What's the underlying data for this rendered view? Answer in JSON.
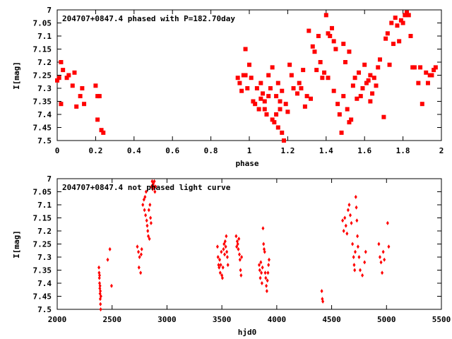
{
  "chart_data": [
    {
      "type": "scatter",
      "title": "204707+0847.4 phased with P=182.70day",
      "xlabel": "phase",
      "ylabel": "I[mag]",
      "xlim": [
        0,
        2
      ],
      "ylim": [
        7.5,
        7
      ],
      "y_inverted": true,
      "x_ticks": [
        "0",
        "0.2",
        "0.4",
        "0.6",
        "0.8",
        "1",
        "1.2",
        "1.4",
        "1.6",
        "1.8",
        "2"
      ],
      "y_ticks": [
        "7",
        "7.05",
        "7.1",
        "7.15",
        "7.2",
        "7.25",
        "7.3",
        "7.35",
        "7.4",
        "7.45",
        "7.5"
      ],
      "marker_color": "#ff0000",
      "marker": "filled-square",
      "grid": false,
      "series": [
        {
          "values": [
            [
              0.0,
              7.27
            ],
            [
              0.01,
              7.26
            ],
            [
              0.02,
              7.2
            ],
            [
              0.03,
              7.23
            ],
            [
              0.02,
              7.36
            ],
            [
              0.05,
              7.26
            ],
            [
              0.06,
              7.25
            ],
            [
              0.08,
              7.29
            ],
            [
              0.09,
              7.24
            ],
            [
              0.1,
              7.37
            ],
            [
              0.12,
              7.33
            ],
            [
              0.13,
              7.3
            ],
            [
              0.14,
              7.36
            ],
            [
              0.2,
              7.29
            ],
            [
              0.21,
              7.33
            ],
            [
              0.22,
              7.33
            ],
            [
              0.21,
              7.42
            ],
            [
              0.23,
              7.46
            ],
            [
              0.24,
              7.47
            ],
            [
              0.94,
              7.26
            ],
            [
              0.95,
              7.28
            ],
            [
              0.96,
              7.31
            ],
            [
              0.97,
              7.25
            ],
            [
              0.98,
              7.25
            ],
            [
              0.98,
              7.15
            ],
            [
              0.99,
              7.3
            ],
            [
              1.0,
              7.21
            ],
            [
              1.01,
              7.26
            ],
            [
              1.02,
              7.35
            ],
            [
              1.03,
              7.36
            ],
            [
              1.04,
              7.3
            ],
            [
              1.05,
              7.38
            ],
            [
              1.06,
              7.34
            ],
            [
              1.07,
              7.32
            ],
            [
              1.08,
              7.38
            ],
            [
              1.09,
              7.4
            ],
            [
              1.1,
              7.33
            ],
            [
              1.11,
              7.3
            ],
            [
              1.12,
              7.42
            ],
            [
              1.13,
              7.43
            ],
            [
              1.14,
              7.4
            ],
            [
              1.15,
              7.45
            ],
            [
              1.16,
              7.38
            ],
            [
              1.17,
              7.47
            ],
            [
              1.18,
              7.5
            ],
            [
              1.15,
              7.28
            ],
            [
              1.16,
              7.35
            ],
            [
              1.12,
              7.22
            ],
            [
              1.1,
              7.25
            ],
            [
              1.06,
              7.28
            ],
            [
              1.08,
              7.35
            ],
            [
              1.14,
              7.33
            ],
            [
              1.17,
              7.31
            ],
            [
              1.19,
              7.36
            ],
            [
              1.2,
              7.39
            ],
            [
              1.21,
              7.21
            ],
            [
              1.22,
              7.25
            ],
            [
              1.23,
              7.3
            ],
            [
              1.25,
              7.32
            ],
            [
              1.26,
              7.28
            ],
            [
              1.27,
              7.3
            ],
            [
              1.28,
              7.23
            ],
            [
              1.29,
              7.37
            ],
            [
              1.3,
              7.33
            ],
            [
              1.31,
              7.08
            ],
            [
              1.32,
              7.34
            ],
            [
              1.33,
              7.14
            ],
            [
              1.34,
              7.16
            ],
            [
              1.35,
              7.23
            ],
            [
              1.36,
              7.1
            ],
            [
              1.37,
              7.2
            ],
            [
              1.38,
              7.26
            ],
            [
              1.39,
              7.24
            ],
            [
              1.4,
              7.02
            ],
            [
              1.41,
              7.26
            ],
            [
              1.42,
              7.1
            ],
            [
              1.43,
              7.07
            ],
            [
              1.44,
              7.31
            ],
            [
              1.45,
              7.15
            ],
            [
              1.46,
              7.36
            ],
            [
              1.47,
              7.4
            ],
            [
              1.48,
              7.47
            ],
            [
              1.49,
              7.33
            ],
            [
              1.5,
              7.2
            ],
            [
              1.51,
              7.38
            ],
            [
              1.52,
              7.43
            ],
            [
              1.53,
              7.42
            ],
            [
              1.54,
              7.29
            ],
            [
              1.55,
              7.26
            ],
            [
              1.56,
              7.34
            ],
            [
              1.57,
              7.24
            ],
            [
              1.58,
              7.33
            ],
            [
              1.59,
              7.3
            ],
            [
              1.6,
              7.21
            ],
            [
              1.61,
              7.28
            ],
            [
              1.62,
              7.27
            ],
            [
              1.63,
              7.35
            ],
            [
              1.64,
              7.32
            ],
            [
              1.65,
              7.26
            ],
            [
              1.66,
              7.29
            ],
            [
              1.67,
              7.22
            ],
            [
              1.68,
              7.19
            ],
            [
              1.7,
              7.41
            ],
            [
              1.71,
              7.11
            ],
            [
              1.72,
              7.09
            ],
            [
              1.73,
              7.21
            ],
            [
              1.74,
              7.05
            ],
            [
              1.75,
              7.13
            ],
            [
              1.76,
              7.03
            ],
            [
              1.77,
              7.06
            ],
            [
              1.78,
              7.12
            ],
            [
              1.79,
              7.04
            ],
            [
              1.8,
              7.05
            ],
            [
              1.81,
              7.02
            ],
            [
              1.82,
              7.01
            ],
            [
              1.83,
              7.02
            ],
            [
              1.84,
              7.1
            ],
            [
              1.85,
              7.22
            ],
            [
              1.86,
              7.22
            ],
            [
              1.88,
              7.28
            ],
            [
              1.89,
              7.22
            ],
            [
              1.9,
              7.36
            ],
            [
              1.92,
              7.24
            ],
            [
              1.93,
              7.28
            ],
            [
              1.94,
              7.25
            ],
            [
              1.95,
              7.25
            ],
            [
              1.96,
              7.23
            ],
            [
              1.97,
              7.22
            ],
            [
              1.49,
              7.13
            ],
            [
              1.44,
              7.12
            ],
            [
              1.41,
              7.09
            ],
            [
              1.52,
              7.16
            ],
            [
              1.63,
              7.25
            ]
          ]
        }
      ]
    },
    {
      "type": "scatter",
      "title": "204707+0847.4 not phased light curve",
      "xlabel": "hjd0",
      "ylabel": "I[mag]",
      "xlim": [
        2000,
        5500
      ],
      "ylim": [
        7.5,
        7
      ],
      "y_inverted": true,
      "x_ticks": [
        "2000",
        "2500",
        "3000",
        "3500",
        "4000",
        "4500",
        "5000",
        "5500"
      ],
      "y_ticks": [
        "7",
        "7.05",
        "7.1",
        "7.15",
        "7.2",
        "7.25",
        "7.3",
        "7.35",
        "7.4",
        "7.45",
        "7.5"
      ],
      "marker_color": "#ff0000",
      "marker": "small-diamond",
      "grid": false,
      "series": [
        {
          "values": [
            [
              2380,
              7.34
            ],
            [
              2382,
              7.36
            ],
            [
              2384,
              7.38
            ],
            [
              2386,
              7.4
            ],
            [
              2388,
              7.42
            ],
            [
              2390,
              7.44
            ],
            [
              2392,
              7.46
            ],
            [
              2394,
              7.48
            ],
            [
              2396,
              7.5
            ],
            [
              2386,
              7.37
            ],
            [
              2390,
              7.41
            ],
            [
              2393,
              7.43
            ],
            [
              2398,
              7.45
            ],
            [
              2460,
              7.31
            ],
            [
              2480,
              7.27
            ],
            [
              2495,
              7.41
            ],
            [
              2730,
              7.26
            ],
            [
              2740,
              7.28
            ],
            [
              2745,
              7.34
            ],
            [
              2750,
              7.3
            ],
            [
              2760,
              7.36
            ],
            [
              2765,
              7.29
            ],
            [
              2770,
              7.27
            ],
            [
              2780,
              7.1
            ],
            [
              2790,
              7.08
            ],
            [
              2795,
              7.12
            ],
            [
              2800,
              7.07
            ],
            [
              2805,
              7.14
            ],
            [
              2810,
              7.05
            ],
            [
              2815,
              7.16
            ],
            [
              2820,
              7.18
            ],
            [
              2825,
              7.2
            ],
            [
              2830,
              7.22
            ],
            [
              2835,
              7.12
            ],
            [
              2840,
              7.23
            ],
            [
              2845,
              7.1
            ],
            [
              2850,
              7.15
            ],
            [
              2855,
              7.17
            ],
            [
              2860,
              7.03
            ],
            [
              2865,
              7.01
            ],
            [
              2870,
              7.04
            ],
            [
              2875,
              7.02
            ],
            [
              2880,
              7.03
            ],
            [
              2885,
              7.01
            ],
            [
              2890,
              7.05
            ],
            [
              2895,
              7.03
            ],
            [
              3460,
              7.26
            ],
            [
              3465,
              7.3
            ],
            [
              3470,
              7.33
            ],
            [
              3475,
              7.34
            ],
            [
              3480,
              7.31
            ],
            [
              3485,
              7.36
            ],
            [
              3490,
              7.33
            ],
            [
              3495,
              7.28
            ],
            [
              3500,
              7.37
            ],
            [
              3505,
              7.38
            ],
            [
              3510,
              7.34
            ],
            [
              3515,
              7.27
            ],
            [
              3520,
              7.25
            ],
            [
              3525,
              7.29
            ],
            [
              3530,
              7.24
            ],
            [
              3535,
              7.26
            ],
            [
              3540,
              7.22
            ],
            [
              3545,
              7.28
            ],
            [
              3550,
              7.3
            ],
            [
              3555,
              7.33
            ],
            [
              3630,
              7.22
            ],
            [
              3635,
              7.26
            ],
            [
              3640,
              7.24
            ],
            [
              3645,
              7.25
            ],
            [
              3650,
              7.27
            ],
            [
              3655,
              7.23
            ],
            [
              3660,
              7.29
            ],
            [
              3665,
              7.31
            ],
            [
              3670,
              7.35
            ],
            [
              3675,
              7.37
            ],
            [
              3680,
              7.3
            ],
            [
              3840,
              7.33
            ],
            [
              3845,
              7.35
            ],
            [
              3850,
              7.38
            ],
            [
              3855,
              7.32
            ],
            [
              3860,
              7.36
            ],
            [
              3865,
              7.4
            ],
            [
              3870,
              7.34
            ],
            [
              3875,
              7.19
            ],
            [
              3880,
              7.25
            ],
            [
              3885,
              7.27
            ],
            [
              3890,
              7.28
            ],
            [
              3895,
              7.36
            ],
            [
              3900,
              7.38
            ],
            [
              3905,
              7.41
            ],
            [
              3910,
              7.43
            ],
            [
              3915,
              7.39
            ],
            [
              3920,
              7.36
            ],
            [
              3925,
              7.33
            ],
            [
              3930,
              7.31
            ],
            [
              4410,
              7.43
            ],
            [
              4415,
              7.46
            ],
            [
              4420,
              7.47
            ],
            [
              4600,
              7.16
            ],
            [
              4610,
              7.2
            ],
            [
              4620,
              7.15
            ],
            [
              4630,
              7.18
            ],
            [
              4640,
              7.21
            ],
            [
              4650,
              7.12
            ],
            [
              4660,
              7.1
            ],
            [
              4670,
              7.14
            ],
            [
              4680,
              7.17
            ],
            [
              4690,
              7.25
            ],
            [
              4700,
              7.3
            ],
            [
              4705,
              7.33
            ],
            [
              4710,
              7.35
            ],
            [
              4715,
              7.28
            ],
            [
              4720,
              7.07
            ],
            [
              4725,
              7.11
            ],
            [
              4730,
              7.16
            ],
            [
              4735,
              7.22
            ],
            [
              4740,
              7.26
            ],
            [
              4750,
              7.3
            ],
            [
              4760,
              7.35
            ],
            [
              4780,
              7.37
            ],
            [
              4800,
              7.32
            ],
            [
              4810,
              7.28
            ],
            [
              4930,
              7.25
            ],
            [
              4940,
              7.3
            ],
            [
              4950,
              7.32
            ],
            [
              4960,
              7.36
            ],
            [
              4970,
              7.28
            ],
            [
              4980,
              7.31
            ],
            [
              5010,
              7.17
            ],
            [
              5020,
              7.26
            ]
          ]
        }
      ]
    }
  ]
}
